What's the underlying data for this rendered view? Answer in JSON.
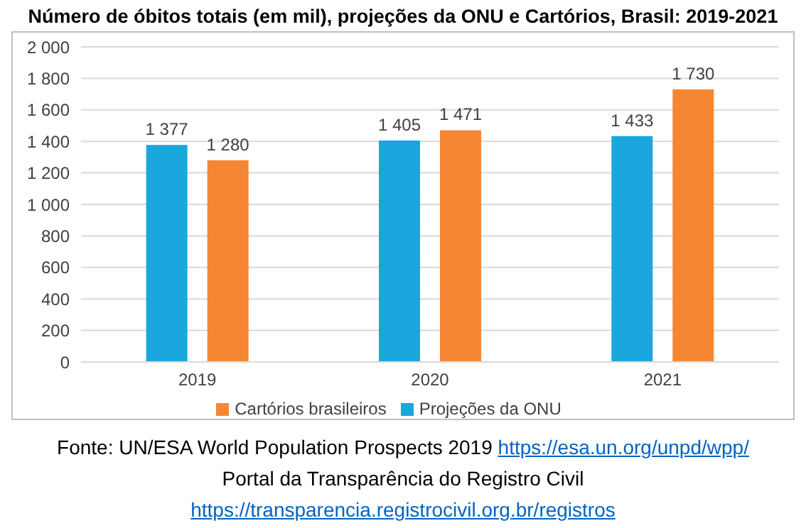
{
  "chart_data": {
    "type": "bar",
    "title": "Número de óbitos totais (em mil), projeções da ONU e Cartórios, Brasil: 2019-2021",
    "categories": [
      "2019",
      "2020",
      "2021"
    ],
    "series": [
      {
        "name": "Projeções da ONU",
        "color": "#1aa7dd",
        "values": [
          1377,
          1405,
          1433
        ],
        "value_labels": [
          "1 377",
          "1 405",
          "1 433"
        ]
      },
      {
        "name": "Cartórios brasileiros",
        "color": "#f58634",
        "values": [
          1280,
          1471,
          1730
        ],
        "value_labels": [
          "1 280",
          "1 471",
          "1 730"
        ]
      }
    ],
    "ylim": [
      0,
      2000
    ],
    "yticks": [
      0,
      {
        "value": 200,
        "label": "200"
      },
      400,
      600,
      800,
      {
        "value": 1000,
        "label": "1 000"
      },
      {
        "value": 1200,
        "label": "1 200"
      },
      {
        "value": 1400,
        "label": "1 400"
      },
      {
        "value": 1600,
        "label": "1 600"
      },
      {
        "value": 1800,
        "label": "1 800"
      },
      {
        "value": 2000,
        "label": "2 000"
      }
    ],
    "grid": "y",
    "legend": "bottom",
    "annotations": [
      "Fonte: UN/ESA World Population Prospects 2019 https://esa.un.org/unpd/wpp/",
      "Portal da Transparência do Registro Civil https://transparencia.registrocivil.org.br/registros"
    ]
  }
}
